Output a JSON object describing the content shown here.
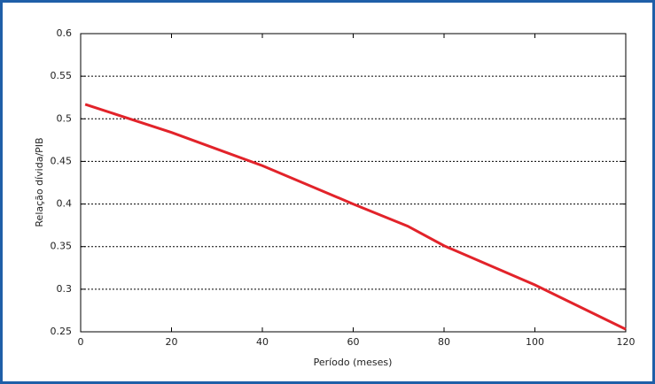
{
  "chart_data": {
    "type": "line",
    "x_label": "Período (meses)",
    "y_label": "Relação dívida/PIB",
    "x": [
      1,
      20,
      40,
      60,
      72,
      80,
      100,
      120
    ],
    "values": [
      0.517,
      0.484,
      0.445,
      0.4,
      0.374,
      0.351,
      0.305,
      0.253
    ],
    "color": "#e2232a",
    "xlim": [
      0,
      120
    ],
    "xticks": [
      0,
      20,
      40,
      60,
      80,
      100,
      120
    ],
    "ylim": [
      0.25,
      0.6
    ],
    "yticks": [
      0.25,
      0.3,
      0.35,
      0.4,
      0.45,
      0.5,
      0.55,
      0.6
    ],
    "grid": true
  }
}
